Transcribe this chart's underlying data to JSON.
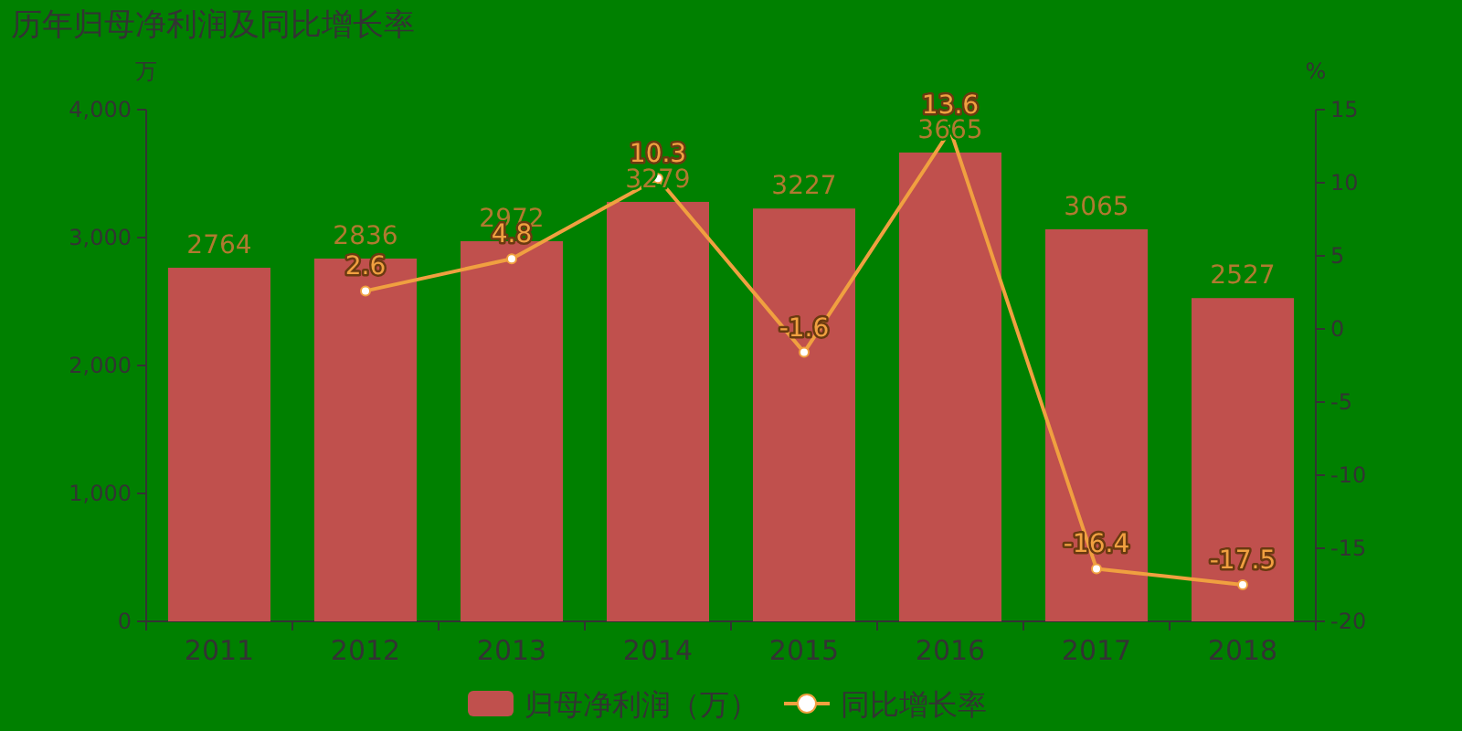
{
  "chart_data": {
    "type": "bar",
    "title": "历年归母净利润及同比增长率",
    "ylabel": "万",
    "y2label": "%",
    "categories": [
      "2011",
      "2012",
      "2013",
      "2014",
      "2015",
      "2016",
      "2017",
      "2018"
    ],
    "series": [
      {
        "name": "归母净利润（万）",
        "color": "#c0504d",
        "values": [
          2764,
          2836,
          2972,
          3279,
          3227,
          3665,
          3065,
          2527
        ]
      },
      {
        "name": "同比增长率",
        "type": "line",
        "axis": "y2",
        "color": "#f0a040",
        "values": [
          null,
          2.6,
          4.8,
          10.3,
          -1.6,
          13.6,
          -16.4,
          -17.5
        ]
      }
    ],
    "ylim": [
      0,
      4000
    ],
    "yticks": [
      0,
      {
        "value": 1000,
        "label": "1,000"
      },
      {
        "value": 2000,
        "label": "2,000"
      },
      {
        "value": 3000,
        "label": "3,000"
      },
      {
        "value": 4000,
        "label": "4,000"
      }
    ],
    "y2lim": [
      -20,
      15
    ],
    "y2ticks": [
      -20,
      -15,
      -10,
      -5,
      0,
      5,
      10,
      15
    ],
    "data_labels": true,
    "legend": "bottom",
    "grid": false,
    "marker": "circle"
  }
}
